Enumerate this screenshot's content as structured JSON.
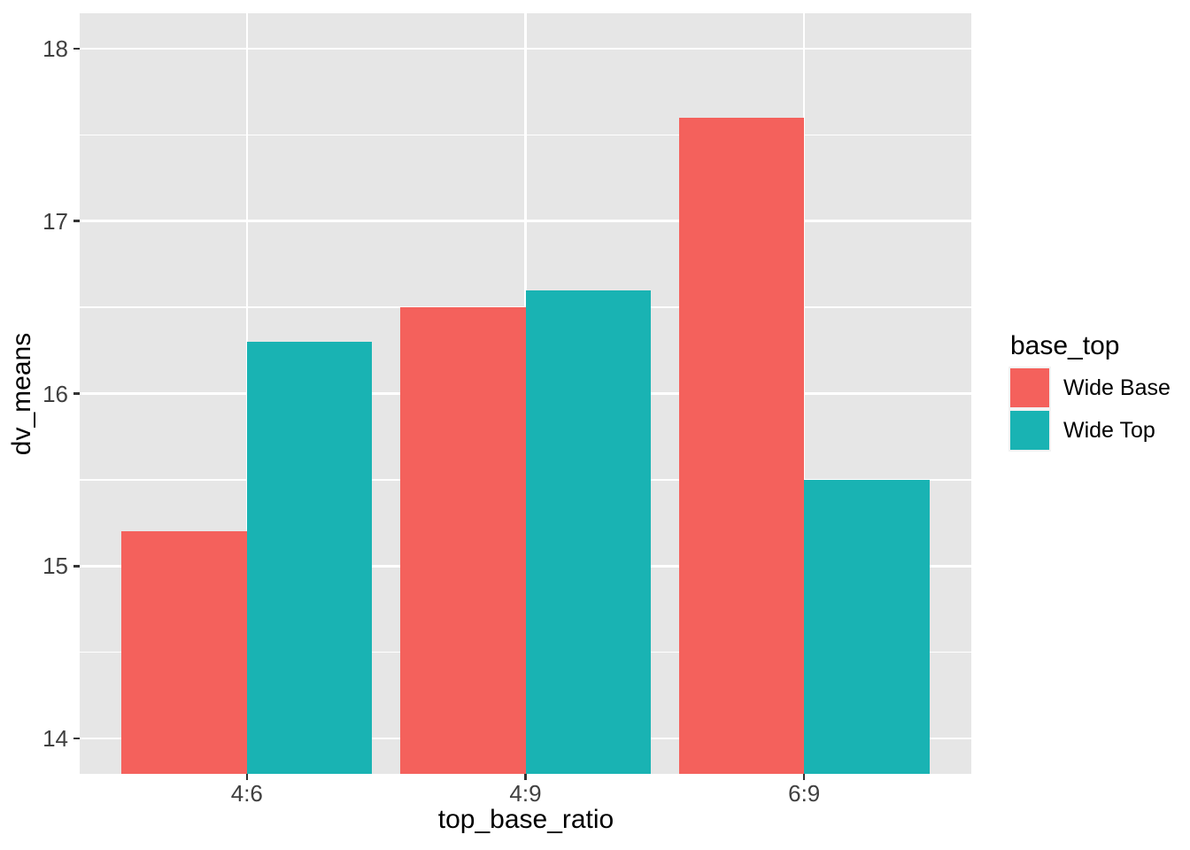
{
  "chart_data": {
    "type": "bar",
    "grouped": true,
    "xlabel": "top_base_ratio",
    "ylabel": "dv_means",
    "categories": [
      "4:6",
      "4:9",
      "6:9"
    ],
    "series": [
      {
        "name": "Wide Base",
        "color": "#F4615C",
        "values": [
          15.2,
          16.5,
          17.6
        ]
      },
      {
        "name": "Wide Top",
        "color": "#19B3B3",
        "values": [
          16.3,
          16.6,
          15.5
        ]
      }
    ],
    "ylim": [
      13.795,
      18.205
    ],
    "yticks": [
      14,
      15,
      16,
      17,
      18
    ],
    "yminor": [
      14.5,
      15.5,
      16.5,
      17.5
    ],
    "x_domain": [
      0.4,
      3.6
    ],
    "bar_width": 0.45,
    "grid": true,
    "panel_bg": "#E6E6E6",
    "grid_color": "#FFFFFF",
    "legend_position": "right",
    "legend_title": "base_top"
  },
  "legend": {
    "title": "base_top",
    "items": [
      {
        "label": "Wide Base",
        "color": "#F4615C"
      },
      {
        "label": "Wide Top",
        "color": "#19B3B3"
      }
    ]
  }
}
